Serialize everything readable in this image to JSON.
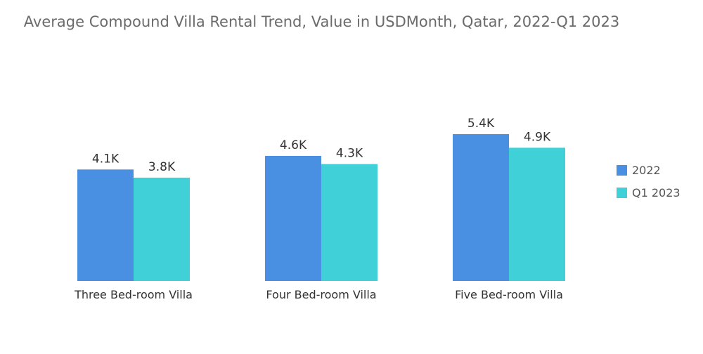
{
  "chart_data": {
    "type": "bar",
    "title": "Average Compound Villa Rental Trend, Value in USDMonth, Qatar, 2022-Q1 2023",
    "categories": [
      "Three Bed-room Villa",
      "Four Bed-room Villa",
      "Five Bed-room Villa"
    ],
    "series": [
      {
        "name": "2022",
        "color": "#4a90e2",
        "values": [
          4100,
          4600,
          5400
        ],
        "labels": [
          "4.1K",
          "4.6K",
          "5.4K"
        ]
      },
      {
        "name": "Q1 2023",
        "color": "#3fd0d8",
        "values": [
          3800,
          4300,
          4900
        ],
        "labels": [
          "3.8K",
          "4.3K",
          "4.9K"
        ]
      }
    ],
    "ylim": [
      0,
      5400
    ],
    "grid": false,
    "legend": "right"
  }
}
